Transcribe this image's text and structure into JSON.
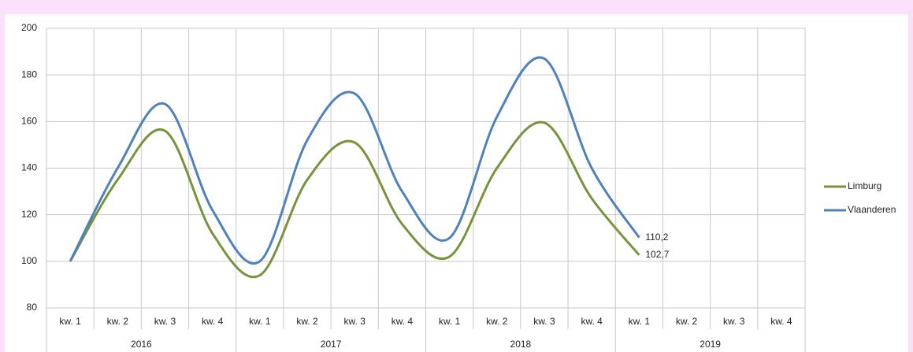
{
  "chart_data": {
    "type": "line",
    "categories": [
      "kw. 1",
      "kw. 2",
      "kw. 3",
      "kw. 4",
      "kw. 1",
      "kw. 2",
      "kw. 3",
      "kw. 4",
      "kw. 1",
      "kw. 2",
      "kw. 3",
      "kw. 4",
      "kw. 1",
      "kw. 2",
      "kw. 3",
      "kw. 4"
    ],
    "groups": [
      "2016",
      "2017",
      "2018",
      "2019"
    ],
    "series": [
      {
        "name": "Limburg",
        "color": "#77933c",
        "values": [
          100,
          135,
          156,
          112,
          94,
          135,
          151,
          116,
          102,
          140,
          159.5,
          127,
          102.7,
          null,
          null,
          null
        ],
        "value_labels": [
          null,
          null,
          null,
          null,
          null,
          null,
          null,
          null,
          null,
          null,
          null,
          null,
          "102,7",
          null,
          null,
          null
        ]
      },
      {
        "name": "Vlaanderen",
        "color": "#4f81bd",
        "values": [
          100,
          140,
          167.5,
          122,
          100,
          152,
          172,
          130,
          110,
          162,
          187,
          140,
          110.2,
          null,
          null,
          null
        ],
        "value_labels": [
          null,
          null,
          null,
          null,
          null,
          null,
          null,
          null,
          null,
          null,
          null,
          null,
          "110,2",
          null,
          null,
          null
        ]
      }
    ],
    "ylim": [
      80,
      200
    ],
    "yticks": [
      80,
      100,
      120,
      140,
      160,
      180,
      200
    ],
    "grid": true,
    "legend": "right"
  }
}
